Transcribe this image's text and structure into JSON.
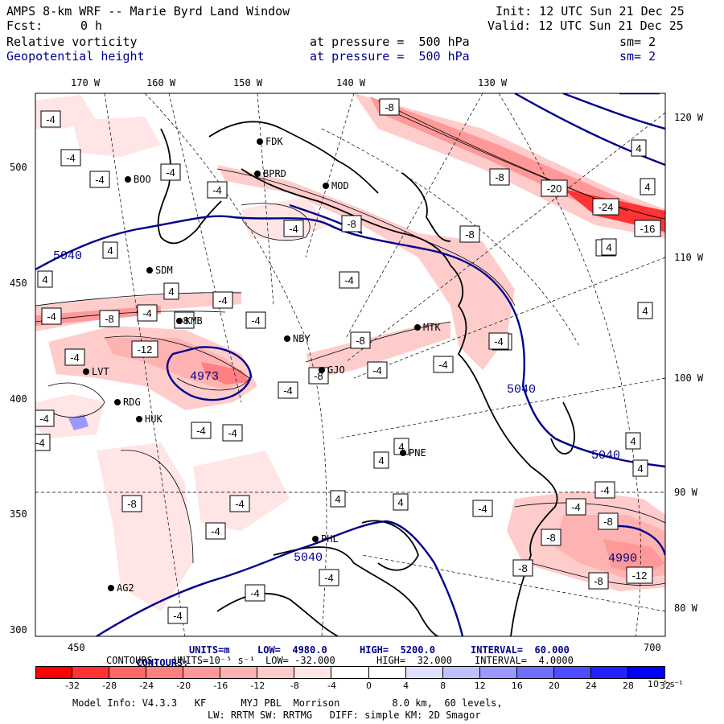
{
  "header": {
    "title": "AMPS 8-km WRF -- Marie Byrd Land Window",
    "init": "Init: 12 UTC Sun 21 Dec 25",
    "fcst_label": "Fcst:",
    "fcst_value": "0 h",
    "valid": "Valid: 12 UTC Sun 21 Dec 25",
    "field1": "Relative vorticity",
    "field1_pressure": "at pressure =  500 hPa",
    "field1_sm": "sm= 2",
    "field2": "Geopotential height",
    "field2_pressure": "at pressure =  500 hPa",
    "field2_sm": "sm= 2"
  },
  "axes": {
    "top": [
      "170 W",
      "160 W",
      "150 W",
      "140 W",
      "130 W"
    ],
    "right": [
      "120 W",
      "110 W",
      "100 W",
      "90 W",
      "80 W"
    ],
    "left": [
      "500",
      "450",
      "400",
      "350",
      "300"
    ],
    "bottom": [
      "450",
      "700"
    ]
  },
  "stations": [
    {
      "name": "FDK"
    },
    {
      "name": "BPRD"
    },
    {
      "name": "MOD"
    },
    {
      "name": "BOO"
    },
    {
      "name": "SDM"
    },
    {
      "name": "KMB"
    },
    {
      "name": "NBY"
    },
    {
      "name": "MTK"
    },
    {
      "name": "GJO"
    },
    {
      "name": "LVT"
    },
    {
      "name": "RDG"
    },
    {
      "name": "HUK"
    },
    {
      "name": "PNE"
    },
    {
      "name": "PHL"
    },
    {
      "name": "AG2"
    }
  ],
  "height_labels": [
    "5040",
    "5040",
    "5040",
    "5040",
    "4973",
    "4990"
  ],
  "vort_boxes": [
    "-4",
    "-4",
    "-4",
    "-4",
    "4",
    "-4",
    "-4",
    "-8",
    "-8",
    "-4",
    "-8",
    "-8",
    "-20",
    "-24",
    "4",
    "4",
    "-4",
    "-16",
    "4",
    "-4",
    "4",
    "-4",
    "-8",
    "-4",
    "-8",
    "-4",
    "-12",
    "-8",
    "-4",
    "-8",
    "-4",
    "-4",
    "-4",
    "-8",
    "-4",
    "-4",
    "-8",
    "-4",
    "-4",
    "4",
    "4",
    "4",
    "-4",
    "4",
    "4",
    "-4",
    "-4",
    "-4",
    "-8",
    "-8",
    "-8",
    "-8",
    "-12",
    "4",
    "-4",
    "-4",
    "4",
    "-4",
    "-4",
    "-4",
    "4"
  ],
  "contours_line1": {
    "label": "CONTOURS:",
    "units": "UNITS=m",
    "low": "LOW=  4980.0",
    "high": "HIGH=  5200.0",
    "interval": "INTERVAL=  60.000"
  },
  "contours_line2": {
    "label": "CONTOURS:",
    "units": "UNITS=10⁻⁵ s⁻¹",
    "low": "LOW= -32.000",
    "high": "HIGH=  32.000",
    "interval": "INTERVAL=  4.0000"
  },
  "colorbar": {
    "ticks": [
      "-32",
      "-28",
      "-24",
      "-20",
      "-16",
      "-12",
      "-8",
      "-4",
      "0",
      "4",
      "8",
      "12",
      "16",
      "20",
      "24",
      "28",
      "32"
    ],
    "units": "10⁻⁵ s⁻¹",
    "colors": [
      "#ff0000",
      "#ff3333",
      "#ff6666",
      "#ff8080",
      "#ff9999",
      "#ffb2b2",
      "#ffcccc",
      "#ffe5e5",
      "#ffffff",
      "#ffffff",
      "#e0e0ff",
      "#c0c0ff",
      "#9999ff",
      "#7070ff",
      "#4d4dff",
      "#2222ff",
      "#0000ff"
    ]
  },
  "footer": {
    "line1": "Model Info: V4.3.3   KF      MYJ PBL  Morrison         8.0 km,  60 levels,",
    "line2": "LW: RRTM SW: RRTMG   DIFF: simple KM: 2D Smagor"
  }
}
